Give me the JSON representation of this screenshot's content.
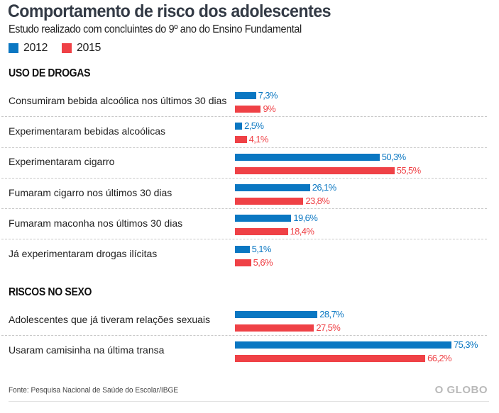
{
  "header": {
    "title": "Comportamento de risco dos adolescentes",
    "subtitle": "Estudo realizado com concluintes do 9º ano do Ensino Fundamental"
  },
  "legend": [
    {
      "label": "2012",
      "color": "#0a77c2"
    },
    {
      "label": "2015",
      "color": "#ef4146"
    }
  ],
  "footer": {
    "source": "Fonte: Pesquisa Nacional de Saúde do Escolar/IBGE",
    "brand": "O GLOBO"
  },
  "chart_data": {
    "type": "bar",
    "orientation": "horizontal",
    "title": "Comportamento de risco dos adolescentes",
    "subtitle": "Estudo realizado com concluintes do 9º ano do Ensino Fundamental",
    "unit": "%",
    "legend_position": "top-left",
    "series_names": [
      "2012",
      "2015"
    ],
    "colors": {
      "2012": "#0a77c2",
      "2015": "#ef4146"
    },
    "sections": [
      {
        "heading": "USO DE DROGAS",
        "categories": [
          {
            "label": "Consumiram bebida alcoólica nos últimos 30 dias",
            "v2012": 7.3,
            "v2015": 9,
            "l2012": "7,3%",
            "l2015": "9%"
          },
          {
            "label": "Experimentaram bebidas alcoólicas",
            "v2012": 2.5,
            "v2015": 4.1,
            "l2012": "2,5%",
            "l2015": "4,1%"
          },
          {
            "label": "Experimentaram cigarro",
            "v2012": 50.3,
            "v2015": 55.5,
            "l2012": "50,3%",
            "l2015": "55,5%"
          },
          {
            "label": "Fumaram cigarro nos últimos 30 dias",
            "v2012": 26.1,
            "v2015": 23.8,
            "l2012": "26,1%",
            "l2015": "23,8%"
          },
          {
            "label": "Fumaram maconha nos últimos 30 dias",
            "v2012": 19.6,
            "v2015": 18.4,
            "l2012": "19,6%",
            "l2015": "18,4%"
          },
          {
            "label": "Já experimentaram drogas ilícitas",
            "v2012": 5.1,
            "v2015": 5.6,
            "l2012": "5,1%",
            "l2015": "5,6%"
          }
        ]
      },
      {
        "heading": "RISCOS NO SEXO",
        "categories": [
          {
            "label": "Adolescentes que já tiveram relações sexuais",
            "v2012": 28.7,
            "v2015": 27.5,
            "l2012": "28,7%",
            "l2015": "27,5%"
          },
          {
            "label": "Usaram camisinha na última transa",
            "v2012": 75.3,
            "v2015": 66.2,
            "l2012": "75,3%",
            "l2015": "66,2%"
          }
        ]
      }
    ]
  }
}
